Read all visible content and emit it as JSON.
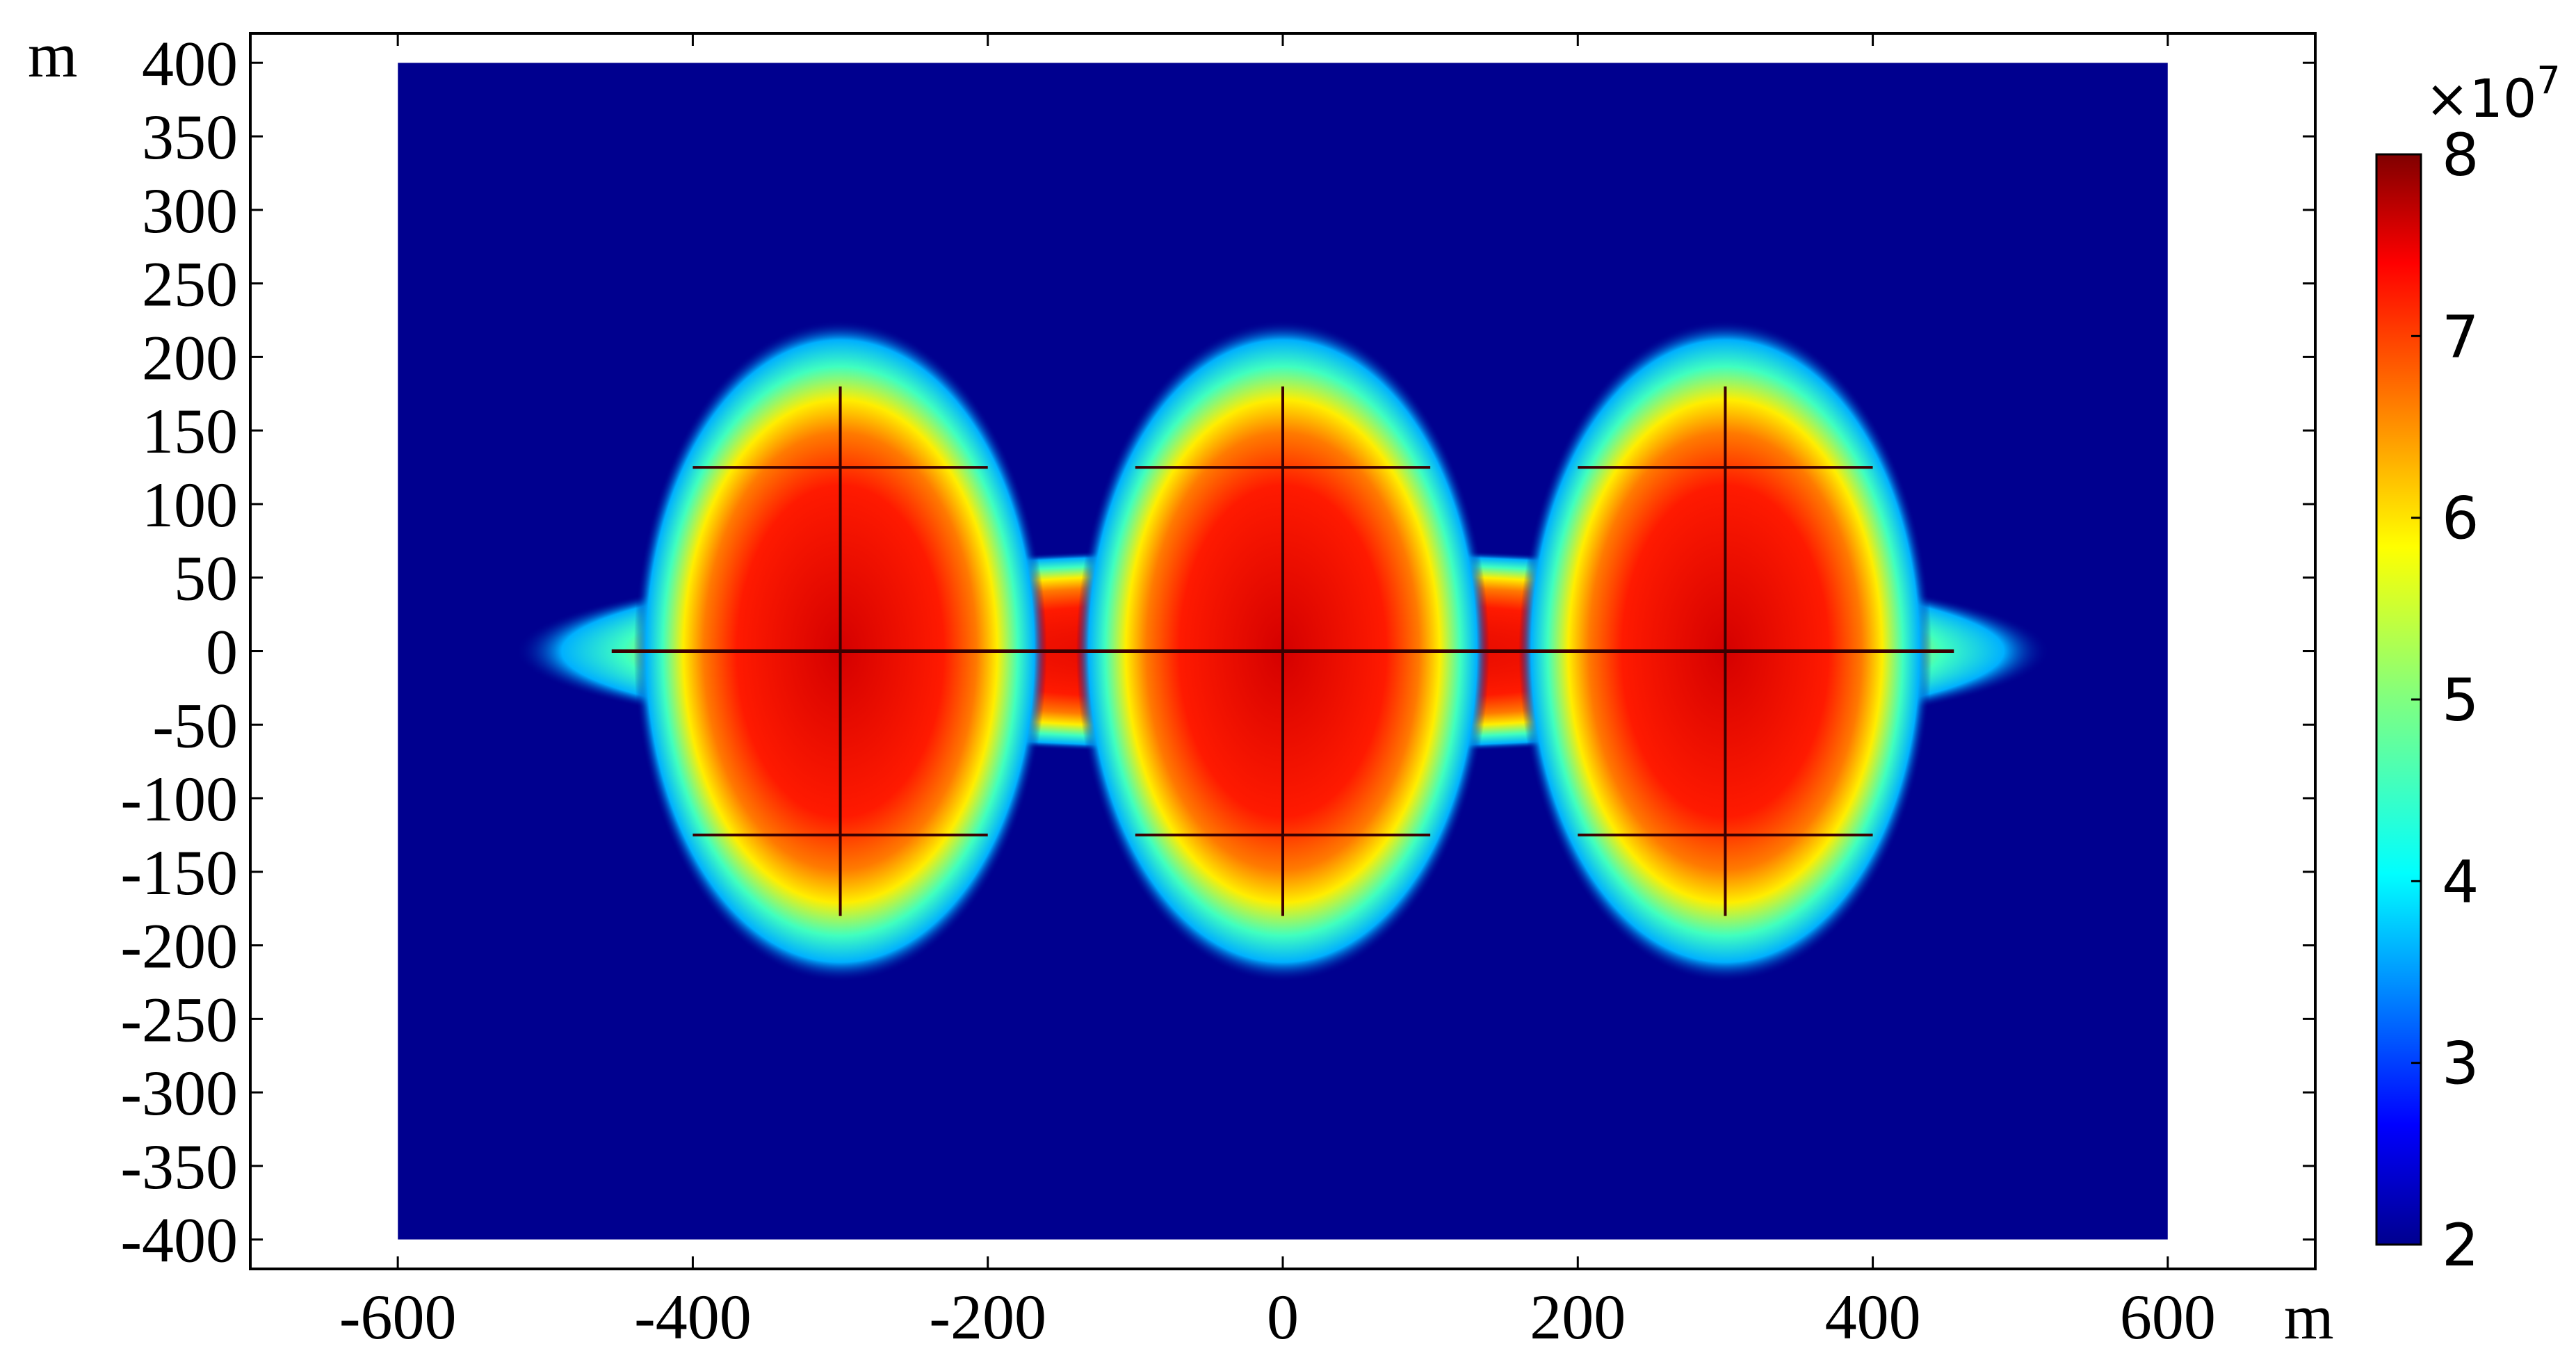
{
  "chart_data": {
    "type": "heatmap",
    "title": "",
    "x_unit": "m",
    "y_unit": "m",
    "xlim": [
      -700,
      700
    ],
    "ylim": [
      -420,
      420
    ],
    "domain": {
      "x": [
        -600,
        600
      ],
      "y": [
        -400,
        400
      ]
    },
    "x_ticks": [
      -600,
      -400,
      -200,
      0,
      200,
      400,
      600
    ],
    "y_ticks": [
      400,
      350,
      300,
      250,
      200,
      150,
      100,
      50,
      0,
      -50,
      -100,
      -150,
      -200,
      -250,
      -300,
      -350,
      -400
    ],
    "colorbar": {
      "multiplier": "×10",
      "exponent": "7",
      "min": 2,
      "max": 8,
      "ticks": [
        8,
        7,
        6,
        5,
        4,
        3,
        2
      ],
      "colormap": [
        "#00008f",
        "#0000ff",
        "#0080ff",
        "#00ffff",
        "#80ff80",
        "#ffff00",
        "#ff8000",
        "#ff0000",
        "#800000"
      ]
    },
    "high_zones": [
      {
        "center_x": -300,
        "center_y": 0
      },
      {
        "center_x": 0,
        "center_y": 0
      },
      {
        "center_x": 300,
        "center_y": 0
      }
    ],
    "background_value": 2
  }
}
